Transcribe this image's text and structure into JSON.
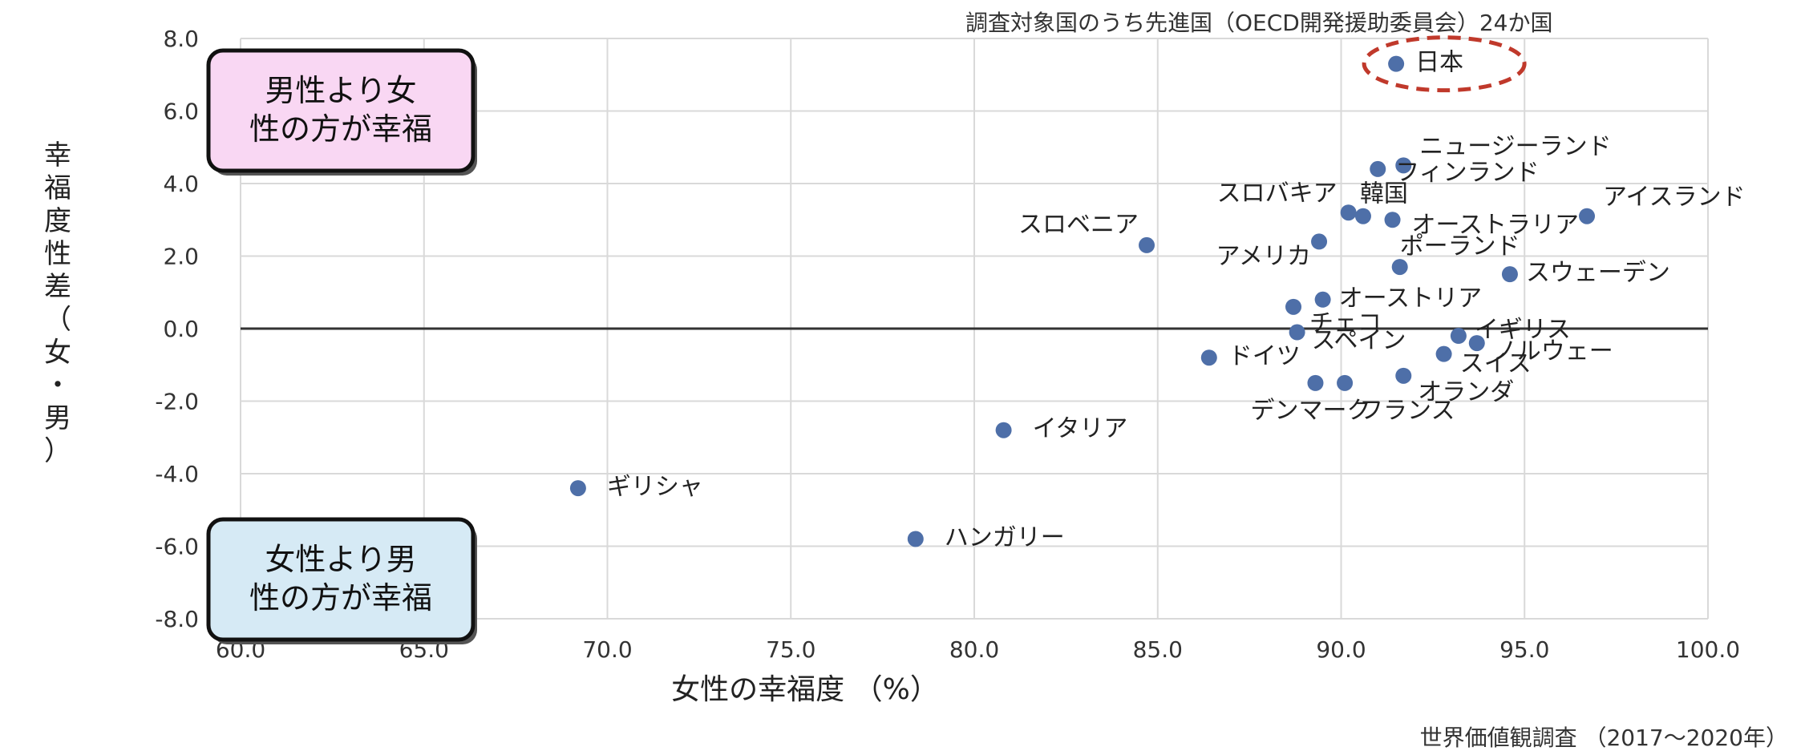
{
  "chart_data": {
    "type": "scatter",
    "subtitle": "調査対象国のうち先進国（OECD開発援助委員会）24か国",
    "xlabel": "女性の幸福度 （%）",
    "ylabel": "幸福度性差（女・男）",
    "source": "世界価値観調査 （2017〜2020年）",
    "xlim": [
      60,
      100
    ],
    "ylim": [
      -8,
      8
    ],
    "x_ticks": [
      "60.0",
      "65.0",
      "70.0",
      "75.0",
      "80.0",
      "85.0",
      "90.0",
      "95.0",
      "100.0"
    ],
    "y_ticks": [
      "8.0",
      "6.0",
      "4.0",
      "2.0",
      "0.0",
      "-2.0",
      "-4.0",
      "-6.0",
      "-8.0"
    ],
    "grid": true,
    "point_color": "#4e6fa8",
    "highlight_color": "#c0392b",
    "annotations": {
      "upper": "男性より女性の方が幸福",
      "lower": "女性より男性の方が幸福",
      "upper_color": "#f9d7f3",
      "lower_color": "#d6eaf5"
    },
    "points": [
      {
        "label": "日本",
        "x": 91.5,
        "y": 7.3,
        "highlight": true
      },
      {
        "label": "ニュージーランド",
        "x": 91.7,
        "y": 4.5
      },
      {
        "label": "フィンランド",
        "x": 91.0,
        "y": 4.4
      },
      {
        "label": "アイスランド",
        "x": 96.7,
        "y": 3.1
      },
      {
        "label": "スロバキア",
        "x": 90.2,
        "y": 3.2
      },
      {
        "label": "韓国",
        "x": 90.6,
        "y": 3.1
      },
      {
        "label": "オーストラリア",
        "x": 91.4,
        "y": 3.0
      },
      {
        "label": "スロベニア",
        "x": 84.7,
        "y": 2.3
      },
      {
        "label": "アメリカ",
        "x": 89.4,
        "y": 2.4
      },
      {
        "label": "ポーランド",
        "x": 91.6,
        "y": 1.7
      },
      {
        "label": "スウェーデン",
        "x": 94.6,
        "y": 1.5
      },
      {
        "label": "オーストリア",
        "x": 89.5,
        "y": 0.8
      },
      {
        "label": "チェコ",
        "x": 88.7,
        "y": 0.6
      },
      {
        "label": "スペイン",
        "x": 88.8,
        "y": -0.1
      },
      {
        "label": "イギリス",
        "x": 93.2,
        "y": -0.2
      },
      {
        "label": "ノルウェー",
        "x": 93.7,
        "y": -0.4
      },
      {
        "label": "スイス",
        "x": 92.8,
        "y": -0.7
      },
      {
        "label": "ドイツ",
        "x": 86.4,
        "y": -0.8
      },
      {
        "label": "オランダ",
        "x": 91.7,
        "y": -1.3
      },
      {
        "label": "デンマーク",
        "x": 89.3,
        "y": -1.5
      },
      {
        "label": "フランス",
        "x": 90.1,
        "y": -1.5
      },
      {
        "label": "イタリア",
        "x": 80.8,
        "y": -2.8
      },
      {
        "label": "ギリシャ",
        "x": 69.2,
        "y": -4.4
      },
      {
        "label": "ハンガリー",
        "x": 78.4,
        "y": -5.8
      }
    ]
  }
}
